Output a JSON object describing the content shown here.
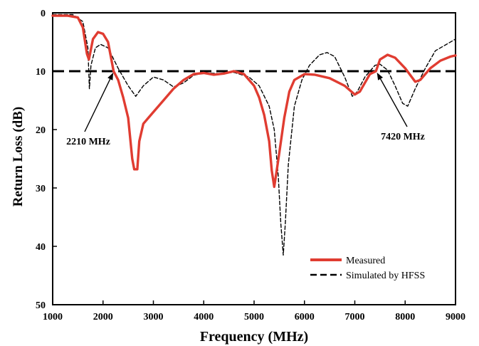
{
  "chart_data": {
    "type": "line",
    "title": "",
    "xlabel": "Frequency (MHz)",
    "ylabel": "Return Loss (dB)",
    "xlim": [
      1000,
      9000
    ],
    "ylim": [
      0,
      50
    ],
    "y_inverted": true,
    "grid": false,
    "legend_placement": "bottom-right",
    "x_ticks": [
      "1000",
      "2000",
      "3000",
      "4000",
      "5000",
      "6000",
      "7000",
      "8000",
      "9000"
    ],
    "y_ticks": [
      "0",
      "10",
      "20",
      "30",
      "40",
      "50"
    ],
    "threshold_db": 10,
    "series": [
      {
        "name": "Measured",
        "color": "#e03c31",
        "style": "solid",
        "points": [
          [
            1000,
            0.5
          ],
          [
            1300,
            0.5
          ],
          [
            1500,
            0.8
          ],
          [
            1600,
            2.5
          ],
          [
            1680,
            7.0
          ],
          [
            1720,
            8.0
          ],
          [
            1800,
            4.5
          ],
          [
            1900,
            3.3
          ],
          [
            2000,
            3.6
          ],
          [
            2100,
            5.0
          ],
          [
            2210,
            10.0
          ],
          [
            2300,
            11.5
          ],
          [
            2400,
            14.5
          ],
          [
            2500,
            18.0
          ],
          [
            2580,
            25.0
          ],
          [
            2620,
            26.8
          ],
          [
            2680,
            26.8
          ],
          [
            2720,
            22.0
          ],
          [
            2800,
            19.0
          ],
          [
            2900,
            18.0
          ],
          [
            3000,
            17.0
          ],
          [
            3200,
            15.0
          ],
          [
            3400,
            13.0
          ],
          [
            3600,
            11.5
          ],
          [
            3800,
            10.5
          ],
          [
            4000,
            10.3
          ],
          [
            4200,
            10.6
          ],
          [
            4400,
            10.4
          ],
          [
            4600,
            10.0
          ],
          [
            4800,
            10.5
          ],
          [
            5000,
            12.5
          ],
          [
            5100,
            14.5
          ],
          [
            5200,
            17.5
          ],
          [
            5300,
            22.0
          ],
          [
            5350,
            27.0
          ],
          [
            5400,
            29.8
          ],
          [
            5450,
            27.0
          ],
          [
            5500,
            24.0
          ],
          [
            5600,
            18.0
          ],
          [
            5700,
            13.5
          ],
          [
            5800,
            11.5
          ],
          [
            6000,
            10.5
          ],
          [
            6200,
            10.6
          ],
          [
            6500,
            11.2
          ],
          [
            6800,
            12.5
          ],
          [
            7000,
            14.0
          ],
          [
            7100,
            13.5
          ],
          [
            7300,
            10.5
          ],
          [
            7420,
            10.0
          ],
          [
            7500,
            8.0
          ],
          [
            7650,
            7.2
          ],
          [
            7800,
            7.7
          ],
          [
            8000,
            9.5
          ],
          [
            8200,
            11.8
          ],
          [
            8300,
            11.5
          ],
          [
            8500,
            9.5
          ],
          [
            8700,
            8.2
          ],
          [
            8900,
            7.5
          ],
          [
            9000,
            7.3
          ]
        ]
      },
      {
        "name": "Simulated by HFSS",
        "color": "#000000",
        "style": "dashed",
        "points": [
          [
            1000,
            0.3
          ],
          [
            1400,
            0.3
          ],
          [
            1600,
            1.5
          ],
          [
            1700,
            6.0
          ],
          [
            1730,
            13.0
          ],
          [
            1760,
            9.0
          ],
          [
            1850,
            6.0
          ],
          [
            1950,
            5.4
          ],
          [
            2100,
            6.0
          ],
          [
            2300,
            9.5
          ],
          [
            2500,
            12.5
          ],
          [
            2650,
            14.3
          ],
          [
            2800,
            12.5
          ],
          [
            3000,
            11.0
          ],
          [
            3200,
            11.5
          ],
          [
            3400,
            12.7
          ],
          [
            3600,
            12.0
          ],
          [
            3800,
            10.7
          ],
          [
            4000,
            10.3
          ],
          [
            4300,
            10.4
          ],
          [
            4600,
            10.2
          ],
          [
            4900,
            11.0
          ],
          [
            5100,
            12.5
          ],
          [
            5300,
            16.0
          ],
          [
            5400,
            20.0
          ],
          [
            5480,
            28.0
          ],
          [
            5530,
            36.0
          ],
          [
            5580,
            41.5
          ],
          [
            5620,
            36.0
          ],
          [
            5680,
            26.0
          ],
          [
            5800,
            16.0
          ],
          [
            5950,
            11.5
          ],
          [
            6100,
            9.0
          ],
          [
            6300,
            7.2
          ],
          [
            6450,
            6.8
          ],
          [
            6600,
            7.5
          ],
          [
            6800,
            11.0
          ],
          [
            6950,
            14.3
          ],
          [
            7050,
            13.5
          ],
          [
            7200,
            11.0
          ],
          [
            7400,
            9.0
          ],
          [
            7500,
            8.8
          ],
          [
            7650,
            9.8
          ],
          [
            7800,
            12.5
          ],
          [
            7950,
            15.5
          ],
          [
            8050,
            16.0
          ],
          [
            8200,
            13.0
          ],
          [
            8400,
            9.5
          ],
          [
            8600,
            6.5
          ],
          [
            8800,
            5.5
          ],
          [
            9000,
            4.5
          ]
        ]
      }
    ],
    "annotations": [
      {
        "text": "2210 MHz",
        "x": 2210,
        "y": 10
      },
      {
        "text": "7420 MHz",
        "x": 7420,
        "y": 10
      }
    ]
  }
}
